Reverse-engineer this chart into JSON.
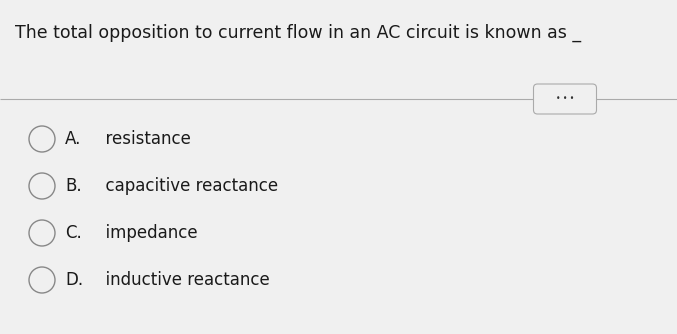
{
  "question": "The total opposition to current flow in an AC circuit is known as _",
  "options": [
    {
      "label": "A.",
      "text": "  resistance"
    },
    {
      "label": "B.",
      "text": "  capacitive reactance"
    },
    {
      "label": "C.",
      "text": "  impedance"
    },
    {
      "label": "D.",
      "text": "  inductive reactance"
    }
  ],
  "bg_color": "#f0f0f0",
  "text_color": "#1a1a1a",
  "option_label_color": "#1a1a1a",
  "option_text_color": "#1a1a1a",
  "circle_edge_color": "#888888",
  "circle_fill_color": "#f0f0f0",
  "divider_color": "#aaaaaa",
  "question_fontsize": 12.5,
  "option_fontsize": 12.0,
  "ellipsis_box_color": "#aaaaaa",
  "ellipsis_text_color": "#333333"
}
